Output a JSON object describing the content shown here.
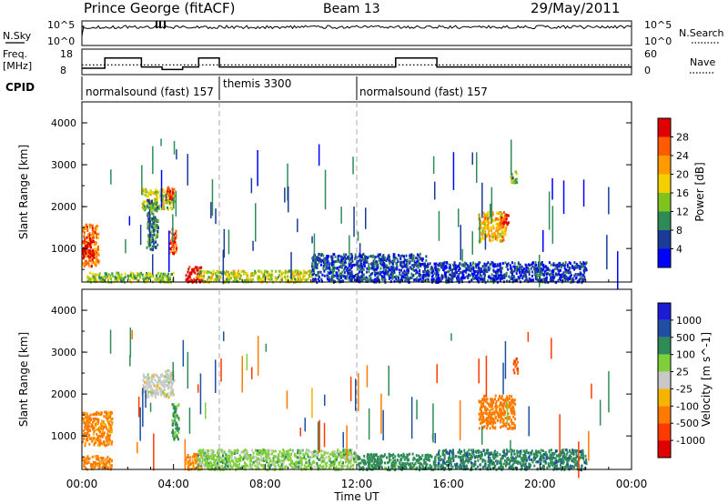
{
  "header": {
    "station": "Prince George (fitACF)",
    "beam": "Beam 13",
    "date": "29/May/2011"
  },
  "noise_panel": {
    "left_label": "N.Sky",
    "right_label": "N.Search",
    "left_ticks": [
      "10^5",
      "10^0"
    ],
    "right_ticks": [
      "10^5",
      "10^0"
    ]
  },
  "freq_panel": {
    "left_label_top": "Freq.",
    "left_label_bottom": "[MHz]",
    "right_label": "Nave",
    "left_ticks": [
      "18",
      "8"
    ],
    "right_ticks": [
      "60",
      "0"
    ],
    "freq_steps": [
      {
        "t0": 0.0,
        "t1": 1.0,
        "v": 10.5
      },
      {
        "t0": 1.0,
        "t1": 2.6,
        "v": 14.5
      },
      {
        "t0": 2.6,
        "t1": 3.5,
        "v": 11.0
      },
      {
        "t0": 3.5,
        "t1": 4.4,
        "v": 10.0
      },
      {
        "t0": 4.4,
        "t1": 5.1,
        "v": 11.0
      },
      {
        "t0": 5.1,
        "t1": 6.0,
        "v": 14.5
      },
      {
        "t0": 6.0,
        "t1": 13.7,
        "v": 11.0
      },
      {
        "t0": 13.7,
        "t1": 15.5,
        "v": 14.5
      },
      {
        "t0": 15.5,
        "t1": 24.0,
        "v": 11.0
      }
    ],
    "nave_level": 11.8
  },
  "cpid": {
    "label": "CPID",
    "segments": [
      {
        "start": 0,
        "name": "normalsound (fast) 157"
      },
      {
        "start": 6,
        "name": "themis 3300"
      },
      {
        "start": 12,
        "name": "normalsound (fast) 157"
      }
    ]
  },
  "chart_data": [
    {
      "type": "heatmap",
      "panel": "power",
      "ylabel": "Slant Range [km]",
      "ylim": [
        200,
        4500
      ],
      "yticks": [
        "1000",
        "2000",
        "3000",
        "4000"
      ],
      "xlim": [
        0,
        24
      ],
      "colorbar": {
        "label": "Power [dB]",
        "ticks": [
          "4",
          "8",
          "12",
          "16",
          "20",
          "24",
          "28"
        ],
        "range": [
          0,
          32
        ]
      },
      "regions": [
        {
          "t": [
            0.0,
            0.7
          ],
          "r": [
            600,
            1600
          ],
          "p": 24
        },
        {
          "t": [
            0.0,
            0.5
          ],
          "r": [
            800,
            1300
          ],
          "p": 30
        },
        {
          "t": [
            0.2,
            4.0
          ],
          "r": [
            220,
            450
          ],
          "p": 14
        },
        {
          "t": [
            2.6,
            4.0
          ],
          "r": [
            1950,
            2450
          ],
          "p": 16
        },
        {
          "t": [
            3.7,
            4.0
          ],
          "r": [
            2200,
            2500
          ],
          "p": 26
        },
        {
          "t": [
            2.8,
            3.3
          ],
          "r": [
            1000,
            2200
          ],
          "p": 10
        },
        {
          "t": [
            3.8,
            4.1
          ],
          "r": [
            900,
            1500
          ],
          "p": 26
        },
        {
          "t": [
            4.5,
            5.2
          ],
          "r": [
            220,
            600
          ],
          "p": 30
        },
        {
          "t": [
            5.0,
            10.0
          ],
          "r": [
            220,
            500
          ],
          "p": 16
        },
        {
          "t": [
            10.0,
            15.0
          ],
          "r": [
            220,
            900
          ],
          "p": 6
        },
        {
          "t": [
            15.0,
            22.0
          ],
          "r": [
            220,
            700
          ],
          "p": 5
        },
        {
          "t": [
            17.3,
            18.5
          ],
          "r": [
            1200,
            1900
          ],
          "p": 20
        },
        {
          "t": [
            18.2,
            18.6
          ],
          "r": [
            1600,
            1850
          ],
          "p": 28
        },
        {
          "t": [
            18.7,
            19.0
          ],
          "r": [
            2600,
            2900
          ],
          "p": 12
        }
      ]
    },
    {
      "type": "heatmap",
      "panel": "velocity",
      "ylabel": "Slant Range [km]",
      "xlabel": "Time UT",
      "ylim": [
        200,
        4500
      ],
      "yticks": [
        "1000",
        "2000",
        "3000",
        "4000"
      ],
      "xlim": [
        0,
        24
      ],
      "xticks": [
        "00:00",
        "04:00",
        "08:00",
        "12:00",
        "16:00",
        "20:00",
        "00:00"
      ],
      "colorbar": {
        "label": "Velocity [m s^-1]",
        "ticks": [
          "1000",
          "500",
          "100",
          "25",
          "-25",
          "-100",
          "-500",
          "-1000"
        ],
        "range": [
          -1200,
          1200
        ]
      },
      "regions": [
        {
          "t": [
            0.0,
            1.3
          ],
          "r": [
            800,
            1600
          ],
          "v": -150
        },
        {
          "t": [
            0.0,
            1.3
          ],
          "r": [
            220,
            550
          ],
          "v": -150
        },
        {
          "t": [
            2.6,
            4.0
          ],
          "r": [
            1950,
            2500
          ],
          "v": 0
        },
        {
          "t": [
            3.6,
            4.0
          ],
          "r": [
            2200,
            2600
          ],
          "v": 0
        },
        {
          "t": [
            3.9,
            4.2
          ],
          "r": [
            900,
            1800
          ],
          "v": 120
        },
        {
          "t": [
            4.5,
            5.2
          ],
          "r": [
            220,
            600
          ],
          "v": -150
        },
        {
          "t": [
            5.0,
            12.0
          ],
          "r": [
            220,
            700
          ],
          "v": 60
        },
        {
          "t": [
            12.0,
            15.5
          ],
          "r": [
            220,
            600
          ],
          "v": 200
        },
        {
          "t": [
            15.5,
            22.0
          ],
          "r": [
            220,
            700
          ],
          "v": 300
        },
        {
          "t": [
            17.3,
            18.9
          ],
          "r": [
            1200,
            2000
          ],
          "v": -200
        },
        {
          "t": [
            18.8,
            19.0
          ],
          "r": [
            2500,
            2900
          ],
          "v": -600
        }
      ]
    }
  ],
  "colors": {
    "power_scale": [
      "#0000ff",
      "#1c3a9a",
      "#2e8b57",
      "#7fc31c",
      "#f5d000",
      "#ff9a00",
      "#ff5a00",
      "#e00000"
    ],
    "velocity_scale": [
      "#1c1cd6",
      "#1e4fa0",
      "#2e8b57",
      "#7fcf3a",
      "#c8c8c8",
      "#f5b400",
      "#ff7a00",
      "#ff3a00",
      "#e00000"
    ],
    "dashed_guides": "#aaaaaa"
  }
}
